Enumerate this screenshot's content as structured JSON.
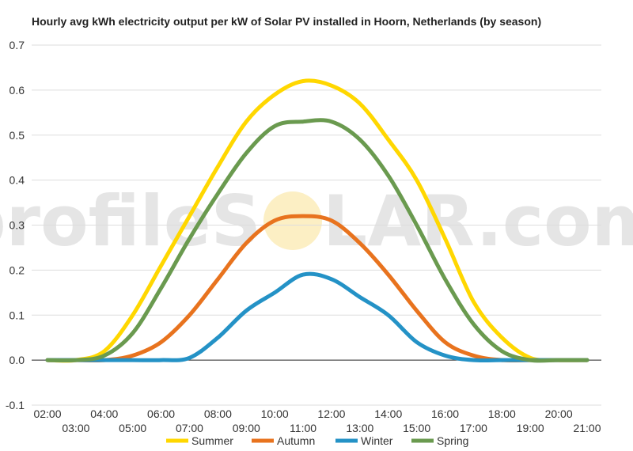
{
  "chart_data": {
    "type": "line",
    "title": "Hourly avg kWh electricity output per kW of Solar PV installed in Hoorn, Netherlands (by season)",
    "watermark": {
      "left": "profileS",
      "right": "LAR.com"
    },
    "x": [
      "02:00",
      "03:00",
      "04:00",
      "05:00",
      "06:00",
      "07:00",
      "08:00",
      "09:00",
      "10:00",
      "11:00",
      "12:00",
      "13:00",
      "14:00",
      "15:00",
      "16:00",
      "17:00",
      "18:00",
      "19:00",
      "20:00",
      "21:00"
    ],
    "x_tick_labels_upper": [
      "02:00",
      "04:00",
      "06:00",
      "08:00",
      "10:00",
      "12:00",
      "14:00",
      "16:00",
      "18:00",
      "20:00"
    ],
    "x_tick_labels_lower": [
      "03:00",
      "05:00",
      "07:00",
      "09:00",
      "11:00",
      "13:00",
      "15:00",
      "17:00",
      "19:00",
      "21:00"
    ],
    "ylim": [
      -0.1,
      0.7
    ],
    "y_ticks": [
      "-0.1",
      "0.0",
      "0.1",
      "0.2",
      "0.3",
      "0.4",
      "0.5",
      "0.6",
      "0.7"
    ],
    "grid": true,
    "legend_position": "bottom",
    "series": [
      {
        "name": "Summer",
        "color": "#FFD700",
        "values": [
          0,
          0,
          0.02,
          0.1,
          0.21,
          0.32,
          0.43,
          0.53,
          0.59,
          0.62,
          0.61,
          0.57,
          0.49,
          0.4,
          0.27,
          0.13,
          0.05,
          0.005,
          0,
          0
        ]
      },
      {
        "name": "Autumn",
        "color": "#E8731E",
        "values": [
          0,
          0,
          0,
          0.01,
          0.04,
          0.1,
          0.18,
          0.26,
          0.31,
          0.32,
          0.31,
          0.26,
          0.19,
          0.11,
          0.04,
          0.01,
          0,
          0,
          0,
          0
        ]
      },
      {
        "name": "Winter",
        "color": "#2492C6",
        "values": [
          0,
          0,
          0,
          0,
          0,
          0.005,
          0.05,
          0.11,
          0.15,
          0.19,
          0.18,
          0.14,
          0.1,
          0.04,
          0.01,
          0,
          0,
          0,
          0,
          0
        ]
      },
      {
        "name": "Spring",
        "color": "#6A9A4F",
        "values": [
          0,
          0,
          0.01,
          0.06,
          0.16,
          0.27,
          0.37,
          0.46,
          0.52,
          0.53,
          0.53,
          0.49,
          0.41,
          0.3,
          0.18,
          0.08,
          0.02,
          0,
          0,
          0
        ]
      }
    ]
  }
}
